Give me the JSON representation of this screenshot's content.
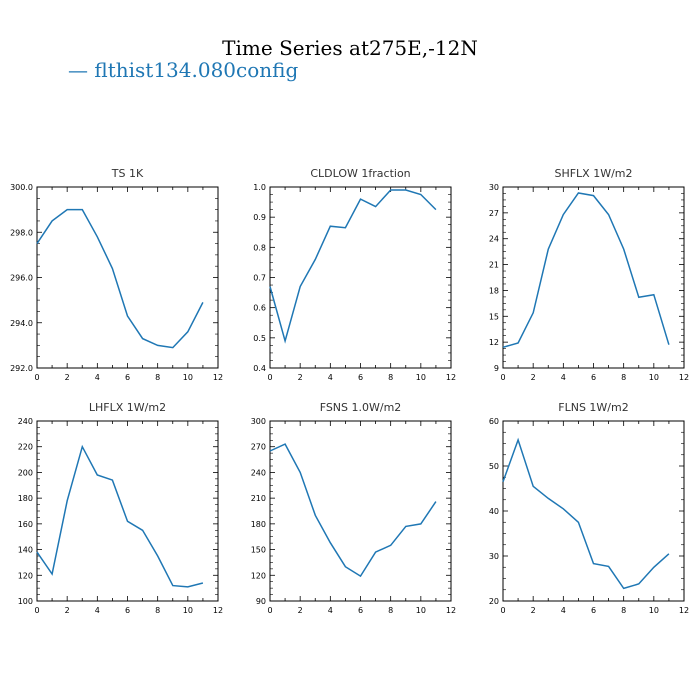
{
  "page": {
    "title": "Time Series at275E,-12N",
    "legend_label": "— flthist134.080config",
    "line_color": "#1f77b4"
  },
  "chart_data": [
    {
      "type": "line",
      "title": "TS   1K",
      "x": [
        0,
        1,
        2,
        3,
        4,
        5,
        6,
        7,
        8,
        9,
        10,
        11
      ],
      "values": [
        297.5,
        298.5,
        299.0,
        299.0,
        297.8,
        296.4,
        294.3,
        293.3,
        293.0,
        292.9,
        293.6,
        294.9
      ],
      "xlim": [
        0,
        12
      ],
      "ylim": [
        292,
        300
      ],
      "xticks": [
        "0",
        "2",
        "4",
        "6",
        "8",
        "10",
        "12"
      ],
      "yticks": [
        "292.0",
        "294.0",
        "296.0",
        "298.0",
        "300.0"
      ]
    },
    {
      "type": "line",
      "title": "CLDLOW   1fraction",
      "x": [
        0,
        1,
        2,
        3,
        4,
        5,
        6,
        7,
        8,
        9,
        10,
        11
      ],
      "values": [
        0.67,
        0.49,
        0.67,
        0.76,
        0.87,
        0.865,
        0.96,
        0.935,
        0.99,
        0.99,
        0.975,
        0.925
      ],
      "xlim": [
        0,
        12
      ],
      "ylim": [
        0.4,
        1.0
      ],
      "xticks": [
        "0",
        "2",
        "4",
        "6",
        "8",
        "10",
        "12"
      ],
      "yticks": [
        "0.4",
        "0.5",
        "0.6",
        "0.7",
        "0.8",
        "0.9",
        "1.0"
      ]
    },
    {
      "type": "line",
      "title": "SHFLX   1W/m2",
      "x": [
        0,
        1,
        2,
        3,
        4,
        5,
        6,
        7,
        8,
        9,
        10,
        11
      ],
      "values": [
        11.4,
        11.9,
        15.4,
        22.8,
        26.8,
        29.3,
        29.0,
        26.8,
        22.8,
        17.2,
        17.5,
        11.7
      ],
      "xlim": [
        0,
        12
      ],
      "ylim": [
        9,
        30
      ],
      "xticks": [
        "0",
        "2",
        "4",
        "6",
        "8",
        "10",
        "12"
      ],
      "yticks": [
        "9",
        "12",
        "15",
        "18",
        "21",
        "24",
        "27",
        "30"
      ]
    },
    {
      "type": "line",
      "title": "LHFLX   1W/m2",
      "x": [
        0,
        1,
        2,
        3,
        4,
        5,
        6,
        7,
        8,
        9,
        10,
        11
      ],
      "values": [
        138,
        121,
        178,
        220,
        198,
        194,
        162,
        155,
        135,
        112,
        111,
        114
      ],
      "xlim": [
        0,
        12
      ],
      "ylim": [
        100,
        240
      ],
      "xticks": [
        "0",
        "2",
        "4",
        "6",
        "8",
        "10",
        "12"
      ],
      "yticks": [
        "100",
        "120",
        "140",
        "160",
        "180",
        "200",
        "220",
        "240"
      ]
    },
    {
      "type": "line",
      "title": "FSNS   1.0W/m2",
      "x": [
        0,
        1,
        2,
        3,
        4,
        5,
        6,
        7,
        8,
        9,
        10,
        11
      ],
      "values": [
        265,
        273,
        240,
        190,
        158,
        130,
        119,
        147,
        155,
        177,
        180,
        206
      ],
      "xlim": [
        0,
        12
      ],
      "ylim": [
        90,
        300
      ],
      "xticks": [
        "0",
        "2",
        "4",
        "6",
        "8",
        "10",
        "12"
      ],
      "yticks": [
        "90",
        "120",
        "150",
        "180",
        "210",
        "240",
        "270",
        "300"
      ]
    },
    {
      "type": "line",
      "title": "FLNS   1W/m2",
      "x": [
        0,
        1,
        2,
        3,
        4,
        5,
        6,
        7,
        8,
        9,
        10,
        11
      ],
      "values": [
        46.5,
        55.8,
        45.5,
        42.8,
        40.5,
        37.5,
        28.3,
        27.7,
        22.8,
        23.8,
        27.5,
        30.5
      ],
      "xlim": [
        0,
        12
      ],
      "ylim": [
        20,
        60
      ],
      "xticks": [
        "0",
        "2",
        "4",
        "6",
        "8",
        "10",
        "12"
      ],
      "yticks": [
        "20",
        "30",
        "40",
        "50",
        "60"
      ]
    }
  ]
}
